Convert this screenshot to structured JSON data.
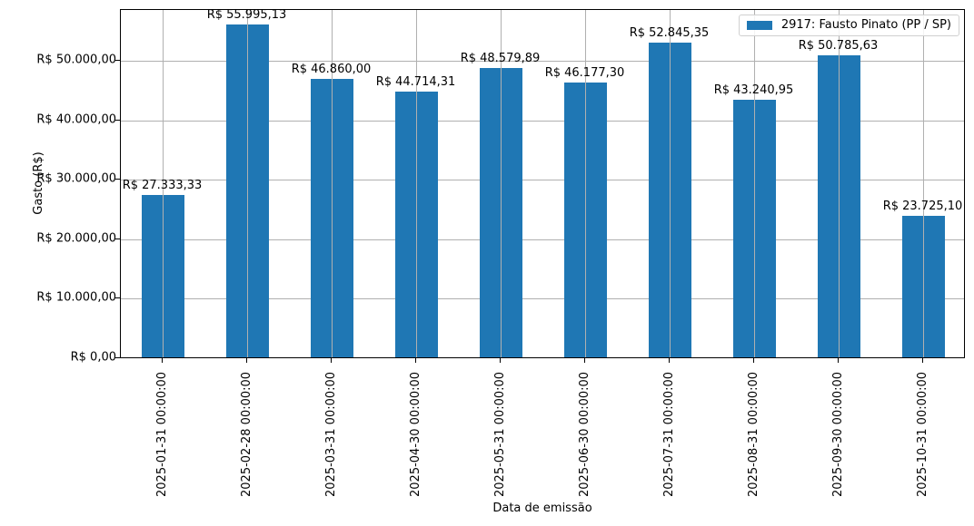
{
  "chart_data": {
    "type": "bar",
    "title": "",
    "xlabel": "Data de emissão",
    "ylabel": "Gasto (R$)",
    "ylim": [
      0,
      58700
    ],
    "grid": true,
    "legend_position": "upper right",
    "categories": [
      "2025-01-31 00:00:00",
      "2025-02-28 00:00:00",
      "2025-03-31 00:00:00",
      "2025-04-30 00:00:00",
      "2025-05-31 00:00:00",
      "2025-06-30 00:00:00",
      "2025-07-31 00:00:00",
      "2025-08-31 00:00:00",
      "2025-09-30 00:00:00",
      "2025-10-31 00:00:00"
    ],
    "series": [
      {
        "name": "2917: Fausto Pinato (PP / SP)",
        "color": "#1f77b4",
        "values": [
          27333.33,
          55995.13,
          46860.0,
          44714.31,
          48579.89,
          46177.3,
          52845.35,
          43240.95,
          50785.63,
          23725.1
        ]
      }
    ],
    "data_labels": [
      "R$ 27.333,33",
      "R$ 55.995,13",
      "R$ 46.860,00",
      "R$ 44.714,31",
      "R$ 48.579,89",
      "R$ 46.177,30",
      "R$ 52.845,35",
      "R$ 43.240,95",
      "R$ 50.785,63",
      "R$ 23.725,10"
    ],
    "yticks": [
      0,
      10000,
      20000,
      30000,
      40000,
      50000
    ],
    "ytick_labels": [
      "R$ 0,00",
      "R$ 10.000,00",
      "R$ 20.000,00",
      "R$ 30.000,00",
      "R$ 40.000,00",
      "R$ 50.000,00"
    ]
  }
}
